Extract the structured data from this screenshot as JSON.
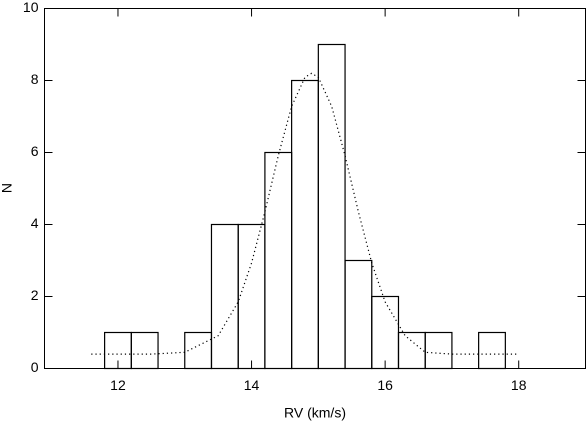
{
  "chart_data": {
    "type": "histogram",
    "x_label": "RV (km/s)",
    "y_label": "N",
    "bins": [
      11.8,
      12.2,
      12.6,
      13.0,
      13.4,
      13.8,
      14.2,
      14.6,
      15.0,
      15.4,
      15.8,
      16.2,
      16.6,
      17.0,
      17.4,
      17.8
    ],
    "values": [
      1,
      1,
      0,
      1,
      4,
      4,
      6,
      8,
      9,
      3,
      2,
      1,
      1,
      0,
      1
    ],
    "color": "#000000",
    "fit": {
      "x": [
        11.6,
        12.0,
        12.5,
        13.0,
        13.5,
        13.8,
        14.0,
        14.2,
        14.4,
        14.6,
        14.8,
        14.9,
        15.0,
        15.2,
        15.4,
        15.6,
        15.8,
        16.0,
        16.3,
        16.6,
        17.0,
        17.5,
        18.0
      ],
      "values": [
        0.4,
        0.4,
        0.4,
        0.45,
        0.91,
        1.85,
        2.93,
        4.35,
        5.91,
        7.28,
        8.09,
        8.2,
        8.09,
        7.28,
        5.91,
        4.35,
        2.93,
        1.85,
        0.91,
        0.45,
        0.4,
        0.4,
        0.4
      ]
    },
    "xlim": [
      10.9,
      19
    ],
    "ylim": [
      0,
      10
    ],
    "xticks": [
      12,
      14,
      16,
      18
    ],
    "yticks": [
      0,
      2,
      4,
      6,
      8,
      10
    ]
  }
}
